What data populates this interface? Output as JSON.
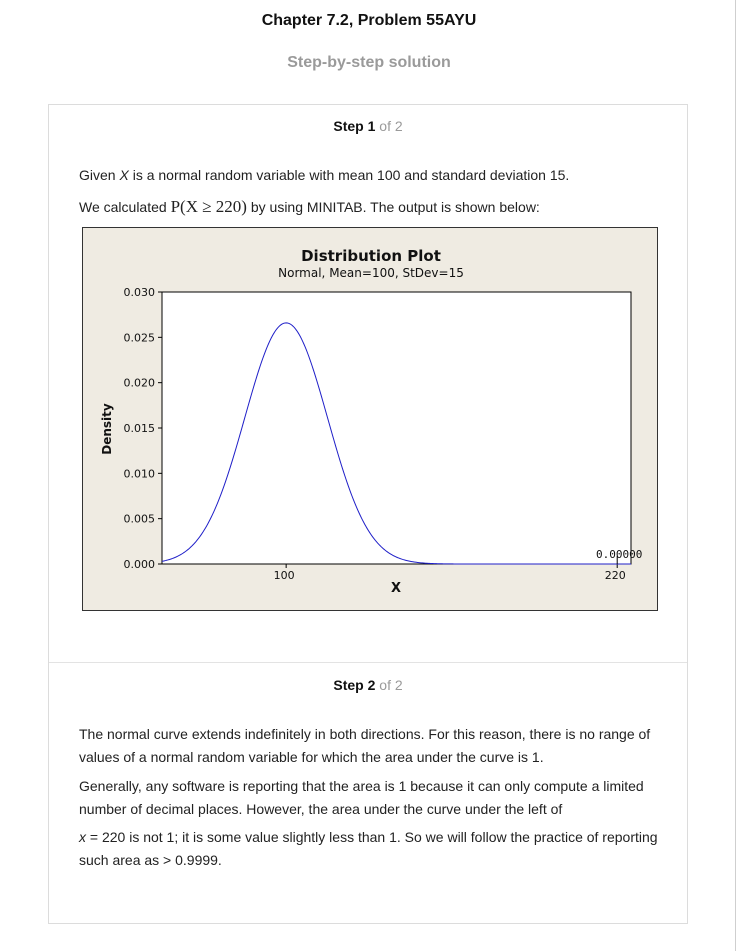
{
  "page": {
    "title": "Chapter 7.2, Problem 55AYU",
    "subtitle": "Step-by-step solution"
  },
  "steps": [
    {
      "word": "Step",
      "number": "1",
      "of": "of 2"
    },
    {
      "word": "Step",
      "number": "2",
      "of": "of 2"
    }
  ],
  "step1": {
    "line1": {
      "pre": "Given ",
      "var": "X",
      "post": " is a normal random variable with mean 100 and standard deviation 15."
    },
    "line2": {
      "pre": "We calculated ",
      "math": "P(X ≥ 220)",
      "post": " by using MINITAB. The output is shown below:"
    }
  },
  "step2": {
    "p1": "The normal curve extends indefinitely in both directions. For this reason, there is no range of values of a normal random variable for which the area under the curve is 1.",
    "p2": "Generally, any software is reporting that the area is 1 because it can only compute a limited number of decimal places. However, the area under the curve under the left of",
    "p3": {
      "var": "x",
      "post": " = 220 is not 1; it is some value slightly less than 1. So we will follow the practice of reporting such area as > 0.9999."
    }
  },
  "chart_data": {
    "type": "line",
    "title": "Distribution Plot",
    "subtitle": "Normal, Mean=100, StDev=15",
    "xlabel": "X",
    "ylabel": "Density",
    "distribution": {
      "family": "normal",
      "mean": 100,
      "stdev": 15
    },
    "xlim": [
      55,
      225
    ],
    "ylim": [
      0,
      0.03
    ],
    "x_ticks": [
      100,
      220
    ],
    "y_ticks": [
      "0.000",
      "0.005",
      "0.010",
      "0.015",
      "0.020",
      "0.025",
      "0.030"
    ],
    "annotation": {
      "x": 220,
      "text": "0.00000"
    },
    "colors": {
      "curve": "#1f1fc8",
      "background": "#efebe2",
      "plot_area": "#ffffff"
    }
  }
}
